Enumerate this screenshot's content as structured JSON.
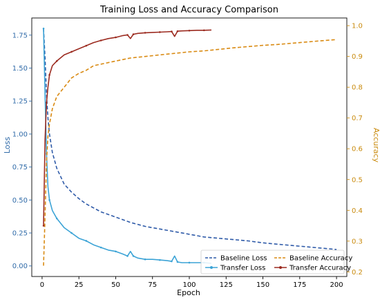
{
  "chart_data": {
    "type": "line",
    "title": "Training Loss and Accuracy Comparison",
    "xlabel": "Epoch",
    "ylabel_left": "Loss",
    "ylabel_right": "Accuracy",
    "xlim": [
      -7,
      207
    ],
    "ylim_left": [
      -0.08,
      1.88
    ],
    "ylim_right": [
      0.185,
      1.025
    ],
    "xticks": [
      0,
      25,
      50,
      75,
      100,
      125,
      150,
      175,
      200
    ],
    "yticks_left": [
      "0.00",
      "0.25",
      "0.50",
      "0.75",
      "1.00",
      "1.25",
      "1.50",
      "1.75"
    ],
    "yticks_right": [
      "0.2",
      "0.3",
      "0.4",
      "0.5",
      "0.6",
      "0.7",
      "0.8",
      "0.9",
      "1.0"
    ],
    "grid": false,
    "legend_position": "lower-right",
    "colors": {
      "baseline_loss": "#2e5aa8",
      "transfer_loss": "#3ba3d6",
      "baseline_accuracy": "#d98a12",
      "transfer_accuracy": "#9b2a1f",
      "left_axis": "#2f6aa8",
      "right_axis": "#c98a0c"
    },
    "series": [
      {
        "name": "Baseline Loss",
        "axis": "left",
        "style": "dashed",
        "points": [
          [
            1,
            1.8
          ],
          [
            2,
            1.58
          ],
          [
            3,
            1.3
          ],
          [
            4,
            1.12
          ],
          [
            5,
            1.0
          ],
          [
            7,
            0.86
          ],
          [
            10,
            0.74
          ],
          [
            15,
            0.62
          ],
          [
            20,
            0.56
          ],
          [
            25,
            0.51
          ],
          [
            30,
            0.47
          ],
          [
            35,
            0.44
          ],
          [
            40,
            0.41
          ],
          [
            50,
            0.37
          ],
          [
            60,
            0.33
          ],
          [
            70,
            0.3
          ],
          [
            80,
            0.28
          ],
          [
            90,
            0.26
          ],
          [
            100,
            0.24
          ],
          [
            110,
            0.22
          ],
          [
            120,
            0.21
          ],
          [
            130,
            0.2
          ],
          [
            140,
            0.19
          ],
          [
            150,
            0.175
          ],
          [
            160,
            0.165
          ],
          [
            170,
            0.155
          ],
          [
            180,
            0.145
          ],
          [
            190,
            0.135
          ],
          [
            200,
            0.125
          ]
        ]
      },
      {
        "name": "Transfer Loss",
        "axis": "left",
        "style": "solid",
        "points": [
          [
            1,
            1.8
          ],
          [
            2,
            1.3
          ],
          [
            3,
            0.85
          ],
          [
            4,
            0.6
          ],
          [
            5,
            0.5
          ],
          [
            7,
            0.42
          ],
          [
            10,
            0.36
          ],
          [
            15,
            0.29
          ],
          [
            20,
            0.25
          ],
          [
            25,
            0.21
          ],
          [
            30,
            0.19
          ],
          [
            35,
            0.16
          ],
          [
            40,
            0.14
          ],
          [
            45,
            0.12
          ],
          [
            50,
            0.11
          ],
          [
            55,
            0.09
          ],
          [
            58,
            0.075
          ],
          [
            60,
            0.11
          ],
          [
            62,
            0.075
          ],
          [
            65,
            0.06
          ],
          [
            70,
            0.05
          ],
          [
            75,
            0.05
          ],
          [
            80,
            0.045
          ],
          [
            85,
            0.04
          ],
          [
            88,
            0.035
          ],
          [
            90,
            0.075
          ],
          [
            92,
            0.03
          ],
          [
            95,
            0.025
          ],
          [
            100,
            0.025
          ],
          [
            105,
            0.025
          ],
          [
            110,
            0.025
          ],
          [
            115,
            0.02
          ]
        ]
      },
      {
        "name": "Baseline Accuracy",
        "axis": "right",
        "style": "dashed",
        "points": [
          [
            1,
            0.22
          ],
          [
            2,
            0.38
          ],
          [
            3,
            0.56
          ],
          [
            4,
            0.64
          ],
          [
            5,
            0.68
          ],
          [
            7,
            0.73
          ],
          [
            10,
            0.77
          ],
          [
            15,
            0.8
          ],
          [
            20,
            0.83
          ],
          [
            25,
            0.845
          ],
          [
            30,
            0.855
          ],
          [
            35,
            0.87
          ],
          [
            40,
            0.875
          ],
          [
            50,
            0.885
          ],
          [
            60,
            0.895
          ],
          [
            70,
            0.9
          ],
          [
            80,
            0.905
          ],
          [
            90,
            0.91
          ],
          [
            100,
            0.915
          ],
          [
            110,
            0.918
          ],
          [
            120,
            0.923
          ],
          [
            130,
            0.928
          ],
          [
            140,
            0.932
          ],
          [
            150,
            0.936
          ],
          [
            160,
            0.939
          ],
          [
            170,
            0.943
          ],
          [
            180,
            0.947
          ],
          [
            190,
            0.951
          ],
          [
            200,
            0.955
          ]
        ]
      },
      {
        "name": "Transfer Accuracy",
        "axis": "right",
        "style": "solid",
        "points": [
          [
            1,
            0.35
          ],
          [
            2,
            0.63
          ],
          [
            3,
            0.75
          ],
          [
            4,
            0.8
          ],
          [
            5,
            0.84
          ],
          [
            7,
            0.87
          ],
          [
            10,
            0.885
          ],
          [
            15,
            0.905
          ],
          [
            20,
            0.915
          ],
          [
            25,
            0.925
          ],
          [
            30,
            0.935
          ],
          [
            35,
            0.945
          ],
          [
            40,
            0.952
          ],
          [
            45,
            0.958
          ],
          [
            50,
            0.962
          ],
          [
            55,
            0.968
          ],
          [
            58,
            0.97
          ],
          [
            60,
            0.958
          ],
          [
            62,
            0.972
          ],
          [
            65,
            0.975
          ],
          [
            70,
            0.977
          ],
          [
            75,
            0.978
          ],
          [
            80,
            0.979
          ],
          [
            85,
            0.98
          ],
          [
            88,
            0.981
          ],
          [
            90,
            0.965
          ],
          [
            92,
            0.982
          ],
          [
            95,
            0.983
          ],
          [
            100,
            0.984
          ],
          [
            105,
            0.985
          ],
          [
            110,
            0.985
          ],
          [
            115,
            0.986
          ]
        ]
      }
    ]
  }
}
